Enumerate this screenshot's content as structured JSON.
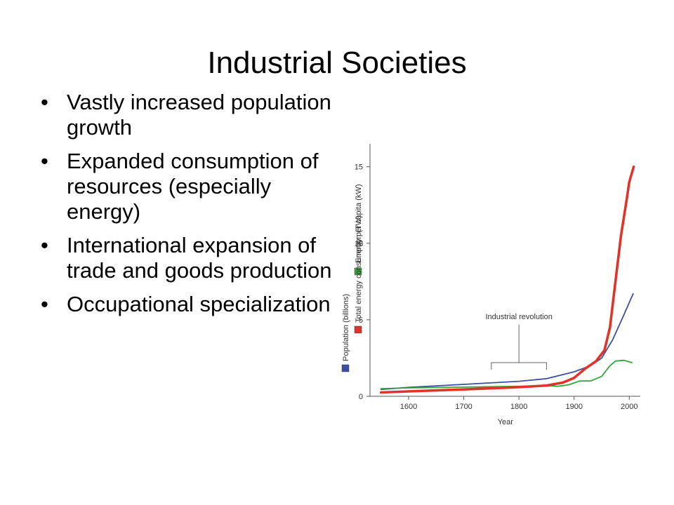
{
  "slide": {
    "title": "Industrial Societies",
    "bullets": [
      "Vastly increased population growth",
      "Expanded consumption of resources (especially energy)",
      "International expansion of trade and goods production",
      "Occupational specialization"
    ]
  },
  "chart_data": {
    "type": "line",
    "xlabel": "Year",
    "ylabel": "",
    "xlim": [
      1530,
      2020
    ],
    "ylim": [
      0,
      16.5
    ],
    "xticks": [
      1600,
      1700,
      1800,
      1900,
      2000
    ],
    "yticks": [
      0,
      5,
      10,
      15
    ],
    "grid": false,
    "legend": {
      "placement": "left-vertical",
      "entries": [
        {
          "label": "Population (billions)",
          "color": "#3a4fa0"
        },
        {
          "label": "Energy per capita (kW)",
          "color": "#33a63a"
        },
        {
          "label": "Total energy consumption (TW)",
          "color": "#e0342a"
        }
      ]
    },
    "annotation": {
      "text": "Industrial revolution",
      "x_range": [
        1750,
        1850
      ]
    },
    "series": [
      {
        "name": "Population (billions)",
        "color": "#3a4fa0",
        "points": [
          [
            1550,
            0.45
          ],
          [
            1600,
            0.58
          ],
          [
            1700,
            0.78
          ],
          [
            1800,
            0.98
          ],
          [
            1850,
            1.15
          ],
          [
            1900,
            1.6
          ],
          [
            1930,
            2.0
          ],
          [
            1950,
            2.5
          ],
          [
            1970,
            3.7
          ],
          [
            1990,
            5.3
          ],
          [
            2007,
            6.7
          ]
        ]
      },
      {
        "name": "Energy per capita (kW)",
        "color": "#33a63a",
        "points": [
          [
            1550,
            0.5
          ],
          [
            1600,
            0.55
          ],
          [
            1700,
            0.6
          ],
          [
            1800,
            0.65
          ],
          [
            1850,
            0.7
          ],
          [
            1870,
            0.65
          ],
          [
            1890,
            0.75
          ],
          [
            1910,
            1.0
          ],
          [
            1930,
            1.0
          ],
          [
            1950,
            1.3
          ],
          [
            1965,
            2.0
          ],
          [
            1975,
            2.3
          ],
          [
            1990,
            2.35
          ],
          [
            2005,
            2.2
          ]
        ]
      },
      {
        "name": "Total energy consumption (TW)",
        "color": "#e0342a",
        "points": [
          [
            1550,
            0.25
          ],
          [
            1600,
            0.32
          ],
          [
            1700,
            0.45
          ],
          [
            1800,
            0.6
          ],
          [
            1850,
            0.7
          ],
          [
            1880,
            0.9
          ],
          [
            1900,
            1.2
          ],
          [
            1920,
            1.8
          ],
          [
            1940,
            2.3
          ],
          [
            1955,
            3.0
          ],
          [
            1965,
            4.5
          ],
          [
            1975,
            7.5
          ],
          [
            1985,
            10.5
          ],
          [
            1995,
            12.8
          ],
          [
            2000,
            14.0
          ],
          [
            2008,
            15.0
          ]
        ]
      }
    ]
  }
}
